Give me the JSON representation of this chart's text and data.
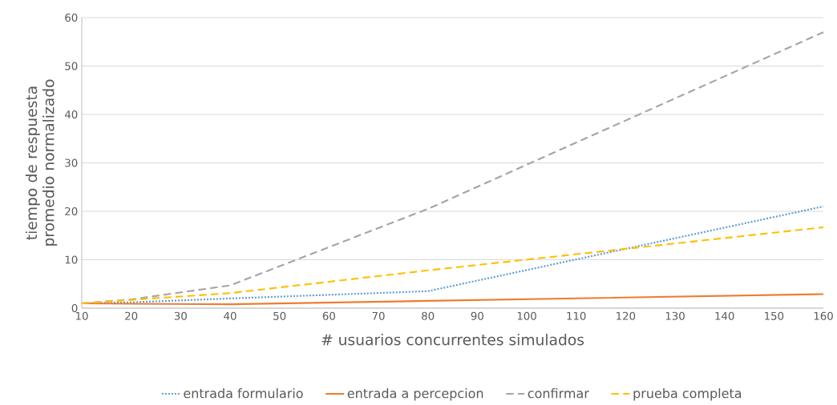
{
  "chart_data": {
    "type": "line",
    "xlabel": "# usuarios concurrentes simulados",
    "ylabel": "tiempo de respuesta promedio normalizado",
    "x": [
      10,
      20,
      40,
      80,
      160
    ],
    "series": [
      {
        "name": "entrada formulario",
        "color": "#5b9bd5",
        "line_style": "dotted",
        "values": [
          1,
          1.2,
          2,
          3.5,
          21
        ]
      },
      {
        "name": "entrada a percepcion",
        "color": "#ed7d31",
        "line_style": "solid",
        "values": [
          1,
          0.9,
          0.8,
          1.5,
          2.9
        ]
      },
      {
        "name": "confirmar",
        "color": "#a5a5a5",
        "line_style": "dashed",
        "values": [
          1,
          1.8,
          4.7,
          20.5,
          57
        ]
      },
      {
        "name": "prueba completa",
        "color": "#ffc000",
        "line_style": "dashed",
        "values": [
          1,
          1.7,
          3.1,
          7.8,
          16.7
        ]
      }
    ],
    "xlim": [
      10,
      160
    ],
    "xticks": [
      10,
      20,
      30,
      40,
      50,
      60,
      70,
      80,
      90,
      100,
      110,
      120,
      130,
      140,
      150,
      160
    ],
    "ylim": [
      0,
      60
    ],
    "yticks": [
      0,
      10,
      20,
      30,
      40,
      50,
      60
    ],
    "grid": "y",
    "legend": "bottom",
    "marker": "none"
  }
}
